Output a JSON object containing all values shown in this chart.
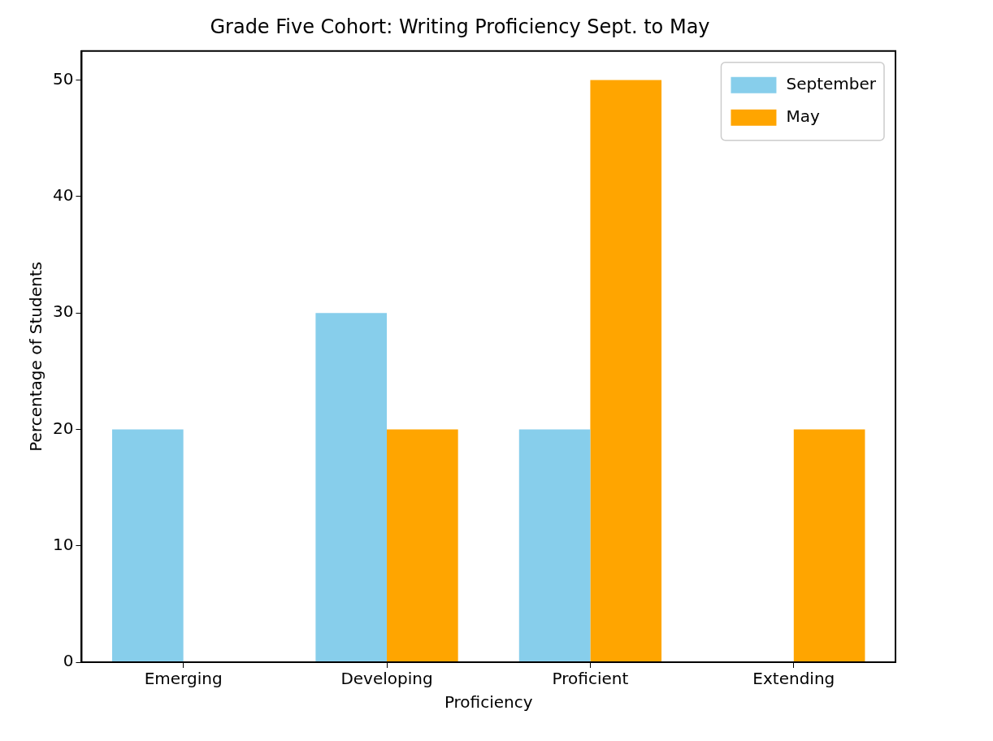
{
  "chart_data": {
    "type": "bar",
    "title": "Grade Five Cohort: Writing Proficiency Sept. to May",
    "xlabel": "Proficiency",
    "ylabel": "Percentage of Students",
    "categories": [
      "Emerging",
      "Developing",
      "Proficient",
      "Extending"
    ],
    "series": [
      {
        "name": "September",
        "color": "#87ceeb",
        "values": [
          20,
          30,
          20,
          0
        ]
      },
      {
        "name": "May",
        "color": "#ffa500",
        "values": [
          0,
          20,
          50,
          20
        ]
      }
    ],
    "ylim": [
      0,
      52.5
    ],
    "yticks": [
      0,
      10,
      20,
      30,
      40,
      50
    ],
    "grid": false,
    "legend": "top right"
  }
}
